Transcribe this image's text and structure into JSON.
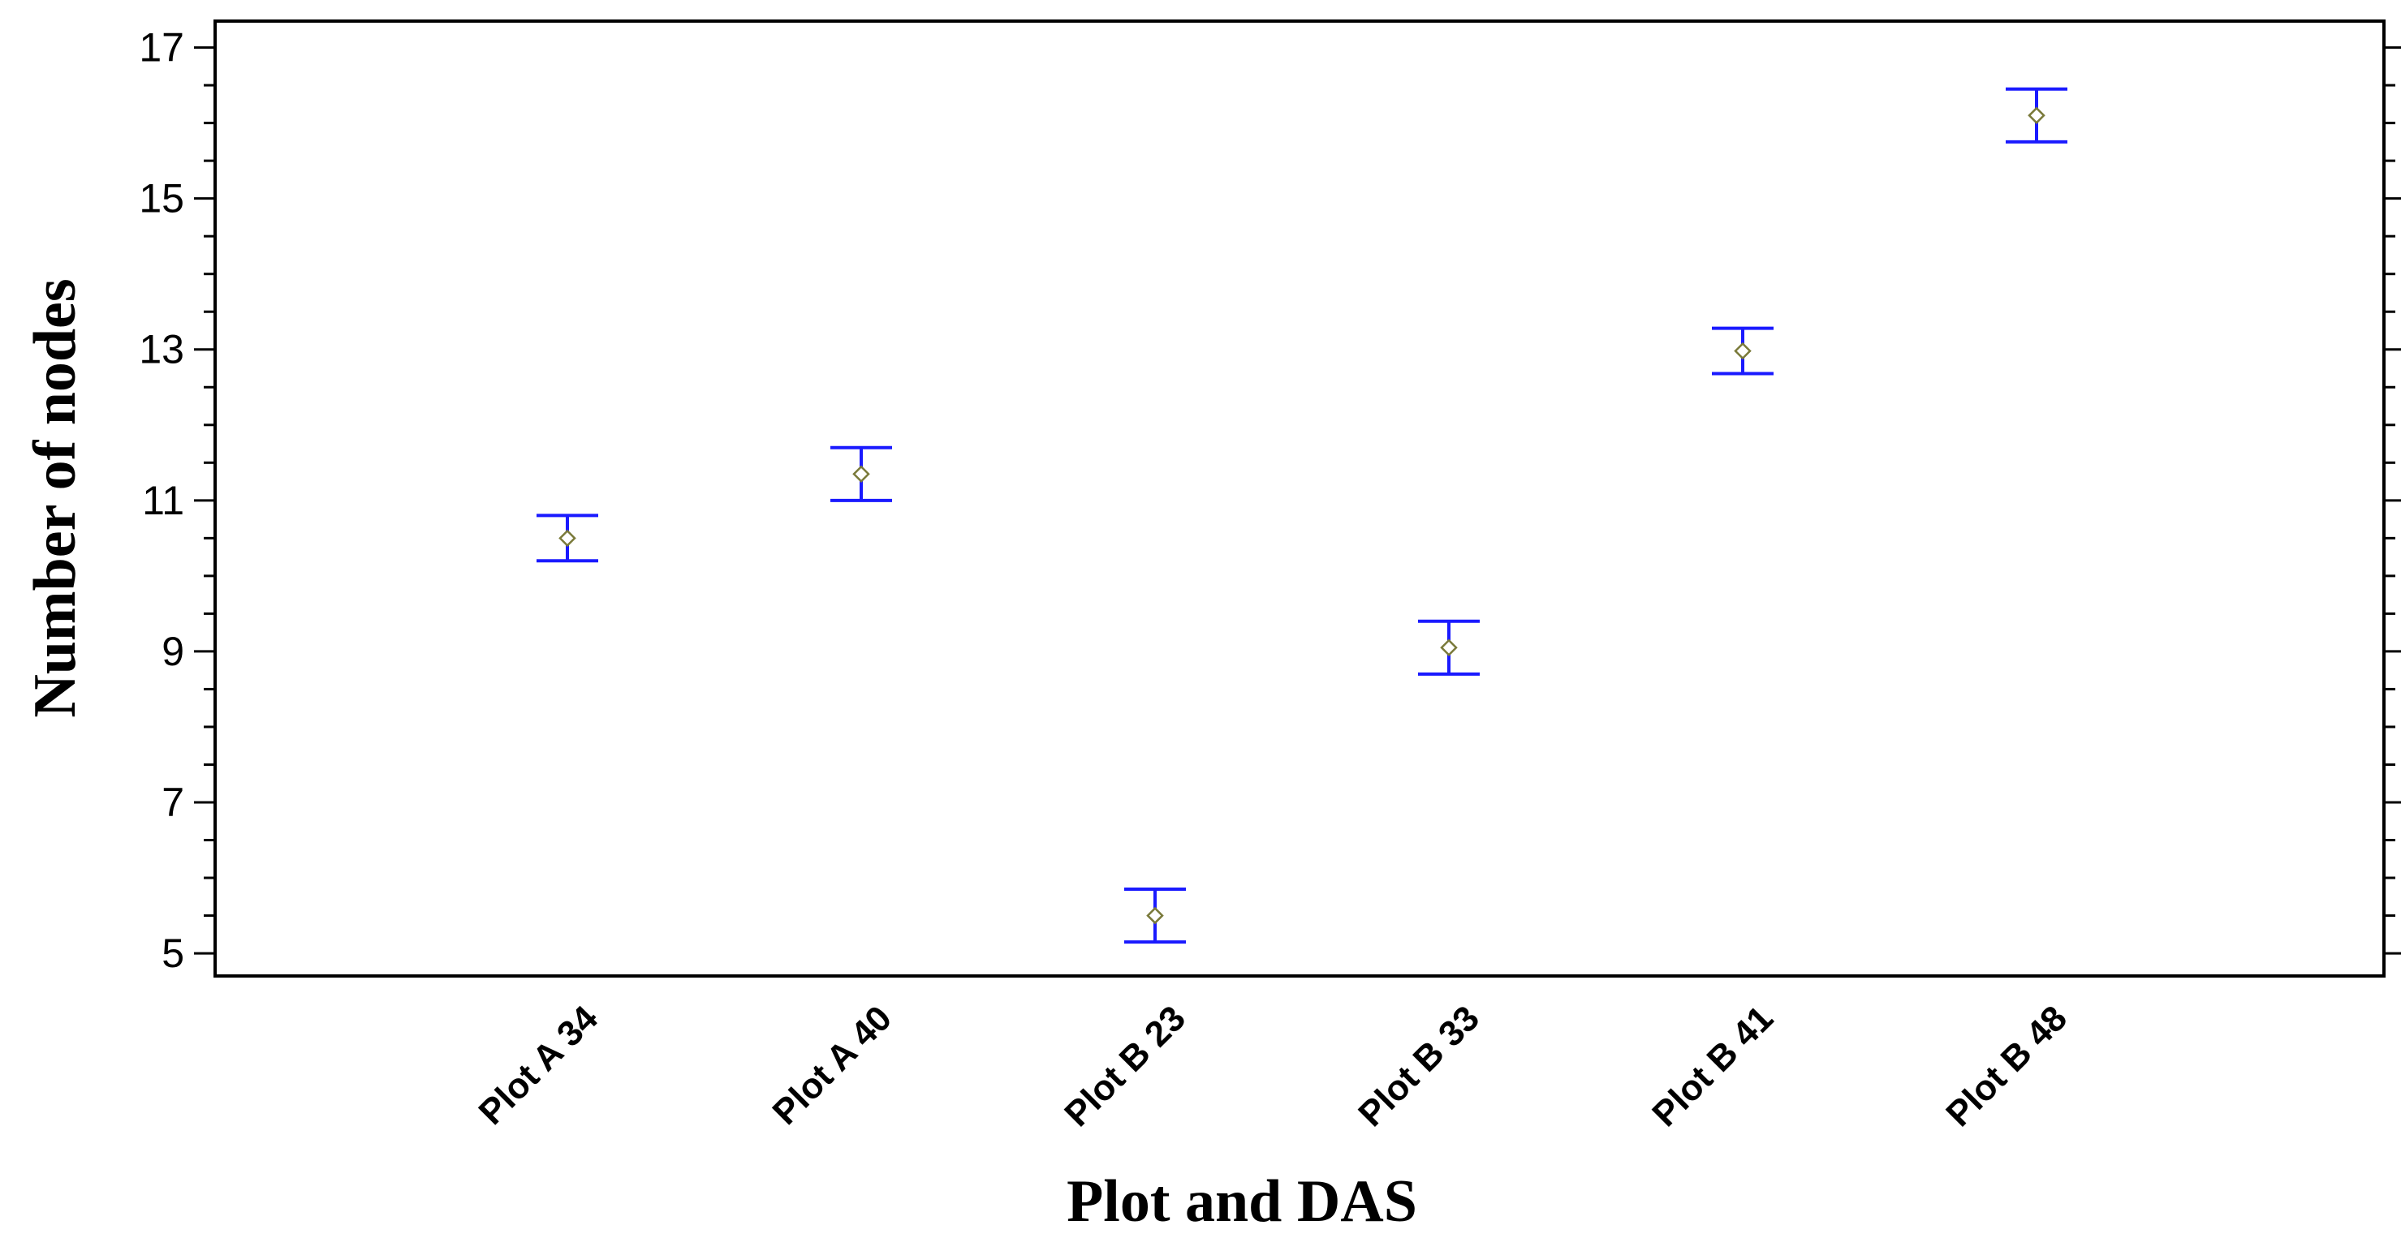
{
  "chart_data": {
    "type": "scatter",
    "title": "",
    "xlabel": "Plot and DAS",
    "ylabel": "Number of nodes",
    "categories": [
      "Plot A 34",
      "Plot A 40",
      "Plot B 23",
      "Plot B 33",
      "Plot B 41",
      "Plot B 48"
    ],
    "values": [
      10.5,
      11.35,
      5.5,
      9.05,
      12.98,
      16.1
    ],
    "error_low": [
      10.2,
      11.0,
      5.15,
      8.7,
      12.68,
      15.75
    ],
    "error_high": [
      10.8,
      11.7,
      5.85,
      9.4,
      13.28,
      16.45
    ],
    "yticks": [
      5,
      7,
      9,
      11,
      13,
      15,
      17
    ],
    "ylim": [
      4.7,
      17.35
    ],
    "grid": false,
    "colors": {
      "error_bar": "#1a1aff",
      "marker": "#7a7a3a",
      "axis": "#000000"
    }
  }
}
